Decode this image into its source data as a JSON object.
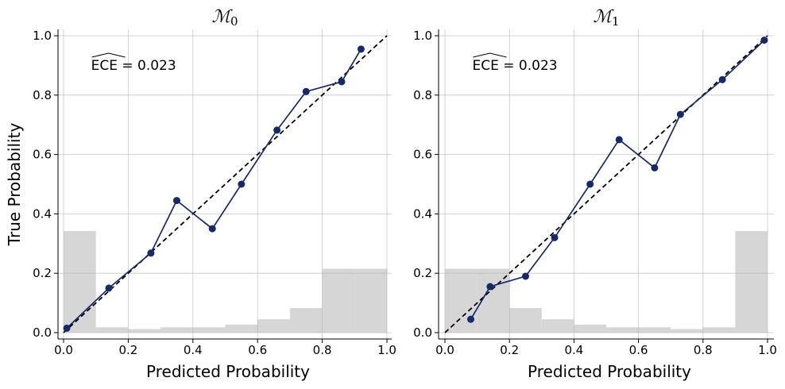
{
  "chart_data": [
    {
      "type": "line",
      "title": "ℳ0",
      "title_base": "ℳ",
      "title_sub": "0",
      "xlabel": "Predicted Probability",
      "ylabel": "True Probability",
      "xlim": [
        -0.02,
        1.02
      ],
      "ylim": [
        -0.02,
        1.02
      ],
      "grid": true,
      "xticks": [
        "0.0",
        "0.2",
        "0.4",
        "0.6",
        "0.8",
        "1.0"
      ],
      "yticks": [
        "0.0",
        "0.2",
        "0.4",
        "0.6",
        "0.8",
        "1.0"
      ],
      "annotation": "ECE = 0.023",
      "annotation_prefix": "ECE",
      "annotation_value": " = 0.023",
      "reference_line": {
        "x": [
          0,
          1
        ],
        "y": [
          0,
          1
        ],
        "style": "dashed",
        "color": "#000000"
      },
      "histogram": {
        "bins": [
          0.0,
          0.1,
          0.2,
          0.3,
          0.4,
          0.5,
          0.6,
          0.7,
          0.8,
          0.9,
          1.0
        ],
        "heights": [
          0.342,
          0.018,
          0.012,
          0.018,
          0.018,
          0.027,
          0.045,
          0.083,
          0.215,
          0.215
        ],
        "color": "#d6d6d6"
      },
      "series": [
        {
          "x": [
            0.01,
            0.14,
            0.27,
            0.35,
            0.46,
            0.55,
            0.66,
            0.75,
            0.86,
            0.92
          ],
          "y": [
            0.015,
            0.15,
            0.268,
            0.445,
            0.35,
            0.5,
            0.682,
            0.812,
            0.845,
            0.955
          ],
          "color": "#152a6b"
        }
      ]
    },
    {
      "type": "line",
      "title": "ℳ1",
      "title_base": "ℳ",
      "title_sub": "1",
      "xlabel": "Predicted Probability",
      "ylabel": "",
      "xlim": [
        -0.02,
        1.02
      ],
      "ylim": [
        -0.02,
        1.02
      ],
      "grid": true,
      "xticks": [
        "0.0",
        "0.2",
        "0.4",
        "0.6",
        "0.8",
        "1.0"
      ],
      "yticks": [
        "0.0",
        "0.2",
        "0.4",
        "0.6",
        "0.8",
        "1.0"
      ],
      "annotation": "ECE = 0.023",
      "annotation_prefix": "ECE",
      "annotation_value": " = 0.023",
      "reference_line": {
        "x": [
          0,
          1
        ],
        "y": [
          0,
          1
        ],
        "style": "dashed",
        "color": "#000000"
      },
      "histogram": {
        "bins": [
          0.0,
          0.1,
          0.2,
          0.3,
          0.4,
          0.5,
          0.6,
          0.7,
          0.8,
          0.9,
          1.0
        ],
        "heights": [
          0.215,
          0.215,
          0.083,
          0.045,
          0.027,
          0.018,
          0.018,
          0.012,
          0.018,
          0.342
        ],
        "color": "#d6d6d6"
      },
      "series": [
        {
          "x": [
            0.08,
            0.14,
            0.25,
            0.34,
            0.45,
            0.54,
            0.65,
            0.73,
            0.86,
            0.99
          ],
          "y": [
            0.045,
            0.155,
            0.19,
            0.32,
            0.5,
            0.65,
            0.555,
            0.735,
            0.852,
            0.985
          ],
          "color": "#152a6b"
        }
      ]
    }
  ]
}
